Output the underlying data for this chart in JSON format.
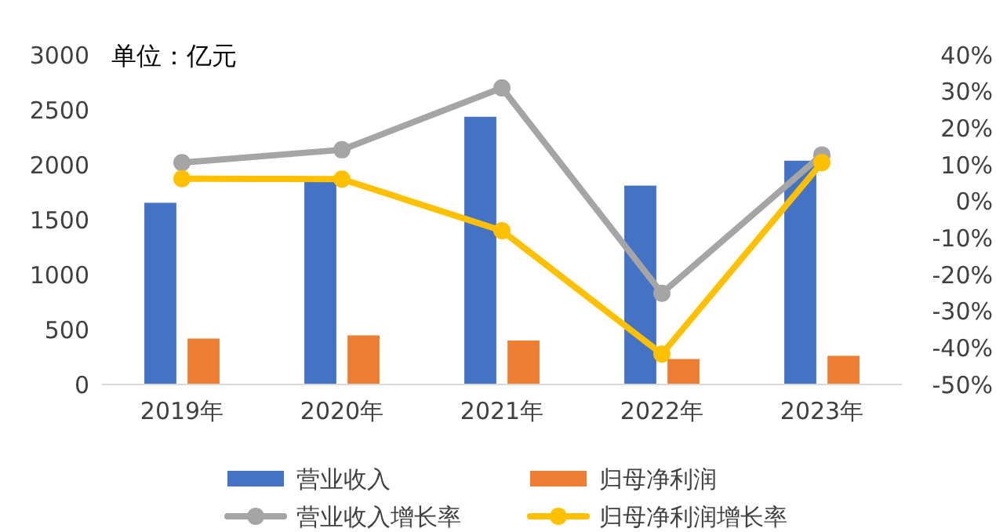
{
  "chart_data": {
    "type": "bar",
    "annotations": [
      "单位：亿元"
    ],
    "categories": [
      "2019年",
      "2020年",
      "2021年",
      "2022年",
      "2023年"
    ],
    "series": [
      {
        "name": "营业收入",
        "color": "#4472c4",
        "values": [
          1654,
          1874,
          2437,
          1810,
          2037
        ]
      },
      {
        "name": "归母净利润",
        "color": "#ed7d31",
        "values": [
          418,
          447,
          400,
          232,
          261
        ]
      },
      {
        "name": "营业收入增长率",
        "type": "line",
        "axis": "y2",
        "color": "#a5a5a5",
        "values": [
          10.6,
          14.1,
          31,
          -25.1,
          12.7
        ]
      },
      {
        "name": "归母净利润增长率",
        "type": "line",
        "axis": "y2",
        "color": "#ffc000",
        "values": [
          6.2,
          6.1,
          -8,
          -41.7,
          10.6
        ]
      }
    ],
    "ylim": [
      0,
      3000
    ],
    "yticks": [
      0,
      500,
      1000,
      1500,
      2000,
      2500,
      3000
    ],
    "y2lim": [
      -50,
      40
    ],
    "y2ticks": [
      {
        "value": -50,
        "label": "-50%"
      },
      {
        "value": -40,
        "label": "-40%"
      },
      {
        "value": -30,
        "label": "-30%"
      },
      {
        "value": -20,
        "label": "-20%"
      },
      {
        "value": -10,
        "label": "-10%"
      },
      {
        "value": 0,
        "label": "0%"
      },
      {
        "value": 10,
        "label": "10%"
      },
      {
        "value": 20,
        "label": "20%"
      },
      {
        "value": 30,
        "label": "30%"
      },
      {
        "value": 40,
        "label": "40%"
      }
    ],
    "marker": "circle",
    "legend": "bottom",
    "grid": false
  }
}
